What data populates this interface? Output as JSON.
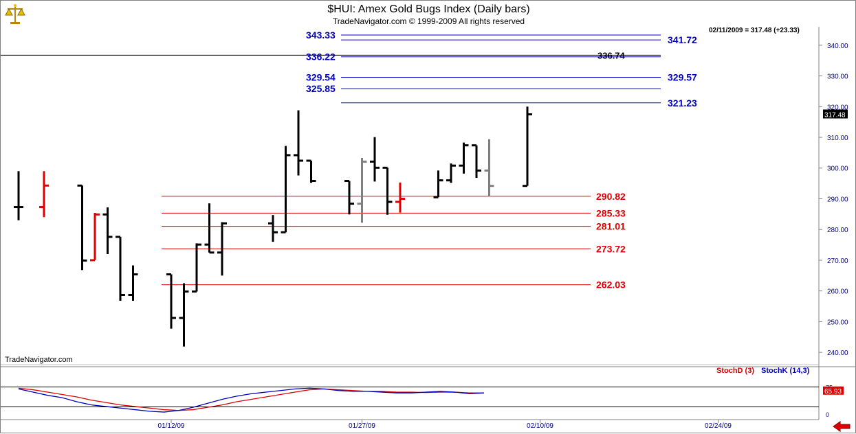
{
  "header": {
    "title": "$HUI:  Amex Gold Bugs Index  (Daily bars)",
    "subtitle": "TradeNavigator.com © 1999-2009 All rights reserved"
  },
  "watermark": "TradeNavigator.com",
  "last_readout": "02/11/2009 = 317.48 (+23.33)",
  "last_price_label": "317.48",
  "colors": {
    "up_bar": "#000000",
    "down_bar": "#e00000",
    "inside_bar": "#808080",
    "support": "#e00000",
    "resistance": "#0000c0",
    "stochD": "#e00000",
    "stochK": "#0000c0"
  },
  "chart_data": {
    "type": "ohlc",
    "title": "$HUI:  Amex Gold Bugs Index  (Daily bars)",
    "ylim": [
      236,
      346
    ],
    "y_ticks": [
      "240.00",
      "250.00",
      "260.00",
      "270.00",
      "280.00",
      "290.00",
      "300.00",
      "310.00",
      "320.00",
      "330.00",
      "340.00"
    ],
    "x_labels": [
      {
        "label": "01/12/09",
        "x": "2009-01-12"
      },
      {
        "label": "01/27/09",
        "x": "2009-01-27"
      },
      {
        "label": "02/10/09",
        "x": "2009-02-10"
      },
      {
        "label": "02/24/09",
        "x": "2009-02-24"
      }
    ],
    "bars": [
      {
        "date": "2008-12-31",
        "o": 287.3,
        "h": 299.0,
        "l": 283.0,
        "c": 287.3,
        "color": "black"
      },
      {
        "date": "2009-01-02",
        "o": 287.3,
        "h": 299.0,
        "l": 284.0,
        "c": 294.3,
        "color": "red"
      },
      {
        "date": "2009-01-05",
        "o": 294.3,
        "h": 294.3,
        "l": 266.8,
        "c": 269.9,
        "color": "black"
      },
      {
        "date": "2009-01-06",
        "o": 270.0,
        "h": 285.4,
        "l": 270.0,
        "c": 284.9,
        "color": "red"
      },
      {
        "date": "2009-01-07",
        "o": 284.9,
        "h": 287.2,
        "l": 272.0,
        "c": 277.6,
        "color": "black"
      },
      {
        "date": "2009-01-08",
        "o": 277.6,
        "h": 277.6,
        "l": 256.8,
        "c": 258.7,
        "color": "black"
      },
      {
        "date": "2009-01-09",
        "o": 258.7,
        "h": 268.3,
        "l": 256.8,
        "c": 265.4,
        "color": "black"
      },
      {
        "date": "2009-01-12",
        "o": 265.4,
        "h": 265.4,
        "l": 247.7,
        "c": 251.2,
        "color": "black"
      },
      {
        "date": "2009-01-13",
        "o": 251.2,
        "h": 262.5,
        "l": 241.9,
        "c": 259.8,
        "color": "black"
      },
      {
        "date": "2009-01-14",
        "o": 259.8,
        "h": 275.5,
        "l": 259.8,
        "c": 275.1,
        "color": "black"
      },
      {
        "date": "2009-01-15",
        "o": 275.1,
        "h": 288.5,
        "l": 272.5,
        "c": 272.5,
        "color": "black"
      },
      {
        "date": "2009-01-16",
        "o": 272.5,
        "h": 282.4,
        "l": 265.0,
        "c": 282.0,
        "color": "black"
      },
      {
        "date": "2009-01-20",
        "o": 282.0,
        "h": 284.7,
        "l": 276.0,
        "c": 279.1,
        "color": "black"
      },
      {
        "date": "2009-01-21",
        "o": 279.1,
        "h": 307.2,
        "l": 279.1,
        "c": 304.2,
        "color": "black"
      },
      {
        "date": "2009-01-22",
        "o": 304.2,
        "h": 318.8,
        "l": 297.6,
        "c": 302.4,
        "color": "black"
      },
      {
        "date": "2009-01-23",
        "o": 302.4,
        "h": 302.4,
        "l": 295.2,
        "c": 295.8,
        "color": "black"
      },
      {
        "date": "2009-01-26",
        "o": 295.8,
        "h": 295.8,
        "l": 284.9,
        "c": 288.4,
        "color": "black"
      },
      {
        "date": "2009-01-27",
        "o": 288.4,
        "h": 303.3,
        "l": 282.2,
        "c": 302.1,
        "color": "gray"
      },
      {
        "date": "2009-01-28",
        "o": 302.1,
        "h": 310.1,
        "l": 295.6,
        "c": 300.1,
        "color": "black"
      },
      {
        "date": "2009-01-29",
        "o": 300.1,
        "h": 300.1,
        "l": 284.8,
        "c": 289.0,
        "color": "black"
      },
      {
        "date": "2009-01-30",
        "o": 289.0,
        "h": 295.3,
        "l": 285.5,
        "c": 290.0,
        "color": "red"
      },
      {
        "date": "2009-02-02",
        "o": 290.5,
        "h": 299.2,
        "l": 290.5,
        "c": 296.0,
        "color": "black"
      },
      {
        "date": "2009-02-03",
        "o": 296.0,
        "h": 301.5,
        "l": 295.2,
        "c": 300.8,
        "color": "black"
      },
      {
        "date": "2009-02-04",
        "o": 300.8,
        "h": 308.3,
        "l": 298.2,
        "c": 307.4,
        "color": "black"
      },
      {
        "date": "2009-02-05",
        "o": 307.4,
        "h": 307.4,
        "l": 296.8,
        "c": 299.2,
        "color": "black"
      },
      {
        "date": "2009-02-06",
        "o": 299.2,
        "h": 309.4,
        "l": 291.0,
        "c": 294.2,
        "color": "gray"
      },
      {
        "date": "2009-02-09",
        "o": 294.2,
        "h": 320.0,
        "l": 294.2,
        "c": 317.5,
        "color": "black"
      }
    ],
    "fib_resistance": [
      {
        "value": "343.33",
        "label_side": "left"
      },
      {
        "value": "341.72",
        "label_side": "right"
      },
      {
        "value": "336.22",
        "label_side": "left"
      },
      {
        "value": "329.54",
        "label_side": "left"
      },
      {
        "value": "329.57",
        "label_side": "right"
      },
      {
        "value": "325.85",
        "label_side": "left"
      },
      {
        "value": "321.23",
        "label_side": "right"
      }
    ],
    "black_line": {
      "value": "336.74"
    },
    "fib_support": [
      {
        "value": "290.82"
      },
      {
        "value": "285.33"
      },
      {
        "value": "281.01"
      },
      {
        "value": "273.72"
      },
      {
        "value": "262.03"
      }
    ],
    "stochastic": {
      "legend_d": "StochD (3)",
      "legend_k": "StochK (14,3)",
      "last_value": "65.93",
      "ylim": [
        0,
        100
      ],
      "upper_level": 75,
      "lower_level": 25,
      "upper_label": "75",
      "lower_label": "0",
      "k": [
        70,
        62,
        54,
        48,
        38,
        30,
        26,
        22,
        18,
        14,
        12,
        16,
        24,
        34,
        44,
        52,
        58,
        62,
        66,
        70,
        72,
        70,
        66,
        64,
        64,
        62,
        60,
        60,
        62,
        64,
        62,
        58,
        60
      ],
      "d": [
        72,
        68,
        62,
        56,
        50,
        42,
        36,
        30,
        26,
        22,
        18,
        16,
        18,
        24,
        30,
        38,
        44,
        50,
        56,
        62,
        68,
        70,
        68,
        66,
        64,
        64,
        62,
        62,
        61,
        62,
        62,
        60,
        60
      ]
    }
  }
}
